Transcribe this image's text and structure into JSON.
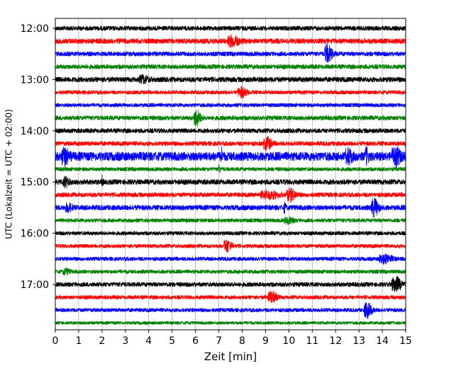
{
  "chart_data": {
    "type": "line",
    "subtype": "helicorder-seismogram",
    "xlabel": "Zeit  [min]",
    "ylabel": "UTC (Lokalzeit = UTC + 02:00)",
    "xlim": [
      0,
      15
    ],
    "x_ticks": [
      0,
      1,
      2,
      3,
      4,
      5,
      6,
      7,
      8,
      9,
      10,
      11,
      12,
      13,
      14,
      15
    ],
    "x_grid": "dotted vertical lines at every minute",
    "y_ticks": [
      "12:00",
      "13:00",
      "14:00",
      "15:00",
      "16:00",
      "17:00"
    ],
    "trace_interval_minutes": 15,
    "trace_colors_cycle": [
      "#000000",
      "#ff0000",
      "#0000ff",
      "#008000"
    ],
    "traces": [
      {
        "start": "12:00",
        "color": "#000000",
        "noise": 0.35,
        "events": []
      },
      {
        "start": "12:15",
        "color": "#ff0000",
        "noise": 0.4,
        "events": [
          {
            "t": 7.5,
            "amp": 0.7,
            "dur": 0.5
          }
        ]
      },
      {
        "start": "12:30",
        "color": "#0000ff",
        "noise": 0.35,
        "events": [
          {
            "t": 11.6,
            "amp": 1.3,
            "dur": 0.35
          }
        ]
      },
      {
        "start": "12:45",
        "color": "#008000",
        "noise": 0.35,
        "events": []
      },
      {
        "start": "13:00",
        "color": "#000000",
        "noise": 0.4,
        "events": [
          {
            "t": 3.7,
            "amp": 0.45,
            "dur": 0.4
          }
        ]
      },
      {
        "start": "13:15",
        "color": "#ff0000",
        "noise": 0.3,
        "events": [
          {
            "t": 7.9,
            "amp": 0.7,
            "dur": 0.4
          }
        ]
      },
      {
        "start": "13:30",
        "color": "#0000ff",
        "noise": 0.3,
        "events": []
      },
      {
        "start": "13:45",
        "color": "#008000",
        "noise": 0.35,
        "events": [
          {
            "t": 6.0,
            "amp": 1.2,
            "dur": 0.3
          }
        ]
      },
      {
        "start": "14:00",
        "color": "#000000",
        "noise": 0.35,
        "events": []
      },
      {
        "start": "14:15",
        "color": "#ff0000",
        "noise": 0.35,
        "events": [
          {
            "t": 9.0,
            "amp": 0.9,
            "dur": 0.35
          }
        ]
      },
      {
        "start": "14:30",
        "color": "#0000ff",
        "noise": 0.7,
        "events": [
          {
            "t": 0.35,
            "amp": 1.1,
            "dur": 0.3
          },
          {
            "t": 7.1,
            "amp": 1.0,
            "dur": 0.08
          },
          {
            "t": 12.5,
            "amp": 0.9,
            "dur": 0.3
          },
          {
            "t": 13.3,
            "amp": 1.0,
            "dur": 0.15
          },
          {
            "t": 14.5,
            "amp": 1.1,
            "dur": 0.4
          }
        ]
      },
      {
        "start": "14:45",
        "color": "#008000",
        "noise": 0.3,
        "events": [
          {
            "t": 7.0,
            "amp": 0.6,
            "dur": 0.08
          }
        ]
      },
      {
        "start": "15:00",
        "color": "#000000",
        "noise": 0.4,
        "events": [
          {
            "t": 0.4,
            "amp": 0.6,
            "dur": 0.3
          },
          {
            "t": 2.0,
            "amp": 0.8,
            "dur": 0.06
          }
        ]
      },
      {
        "start": "15:15",
        "color": "#ff0000",
        "noise": 0.35,
        "events": [
          {
            "t": 9.0,
            "amp": 0.5,
            "dur": 0.8
          },
          {
            "t": 10.0,
            "amp": 0.8,
            "dur": 0.4
          }
        ]
      },
      {
        "start": "15:30",
        "color": "#0000ff",
        "noise": 0.4,
        "events": [
          {
            "t": 0.5,
            "amp": 0.5,
            "dur": 0.3
          },
          {
            "t": 9.8,
            "amp": 0.6,
            "dur": 0.1
          },
          {
            "t": 13.6,
            "amp": 1.2,
            "dur": 0.35
          }
        ]
      },
      {
        "start": "15:45",
        "color": "#008000",
        "noise": 0.3,
        "events": [
          {
            "t": 9.9,
            "amp": 0.4,
            "dur": 0.4
          }
        ]
      },
      {
        "start": "16:00",
        "color": "#000000",
        "noise": 0.3,
        "events": []
      },
      {
        "start": "16:15",
        "color": "#ff0000",
        "noise": 0.3,
        "events": [
          {
            "t": 7.3,
            "amp": 0.9,
            "dur": 0.35
          }
        ]
      },
      {
        "start": "16:30",
        "color": "#0000ff",
        "noise": 0.3,
        "events": [
          {
            "t": 14.0,
            "amp": 0.6,
            "dur": 0.6
          }
        ]
      },
      {
        "start": "16:45",
        "color": "#008000",
        "noise": 0.3,
        "events": [
          {
            "t": 0.4,
            "amp": 0.4,
            "dur": 0.3
          }
        ]
      },
      {
        "start": "17:00",
        "color": "#000000",
        "noise": 0.35,
        "events": [
          {
            "t": 14.5,
            "amp": 1.1,
            "dur": 0.4
          }
        ]
      },
      {
        "start": "17:15",
        "color": "#ff0000",
        "noise": 0.3,
        "events": [
          {
            "t": 9.2,
            "amp": 0.8,
            "dur": 0.4
          }
        ]
      },
      {
        "start": "17:30",
        "color": "#0000ff",
        "noise": 0.3,
        "events": [
          {
            "t": 13.3,
            "amp": 1.1,
            "dur": 0.35
          }
        ]
      },
      {
        "start": "17:45",
        "color": "#008000",
        "noise": 0.25,
        "events": []
      }
    ]
  }
}
